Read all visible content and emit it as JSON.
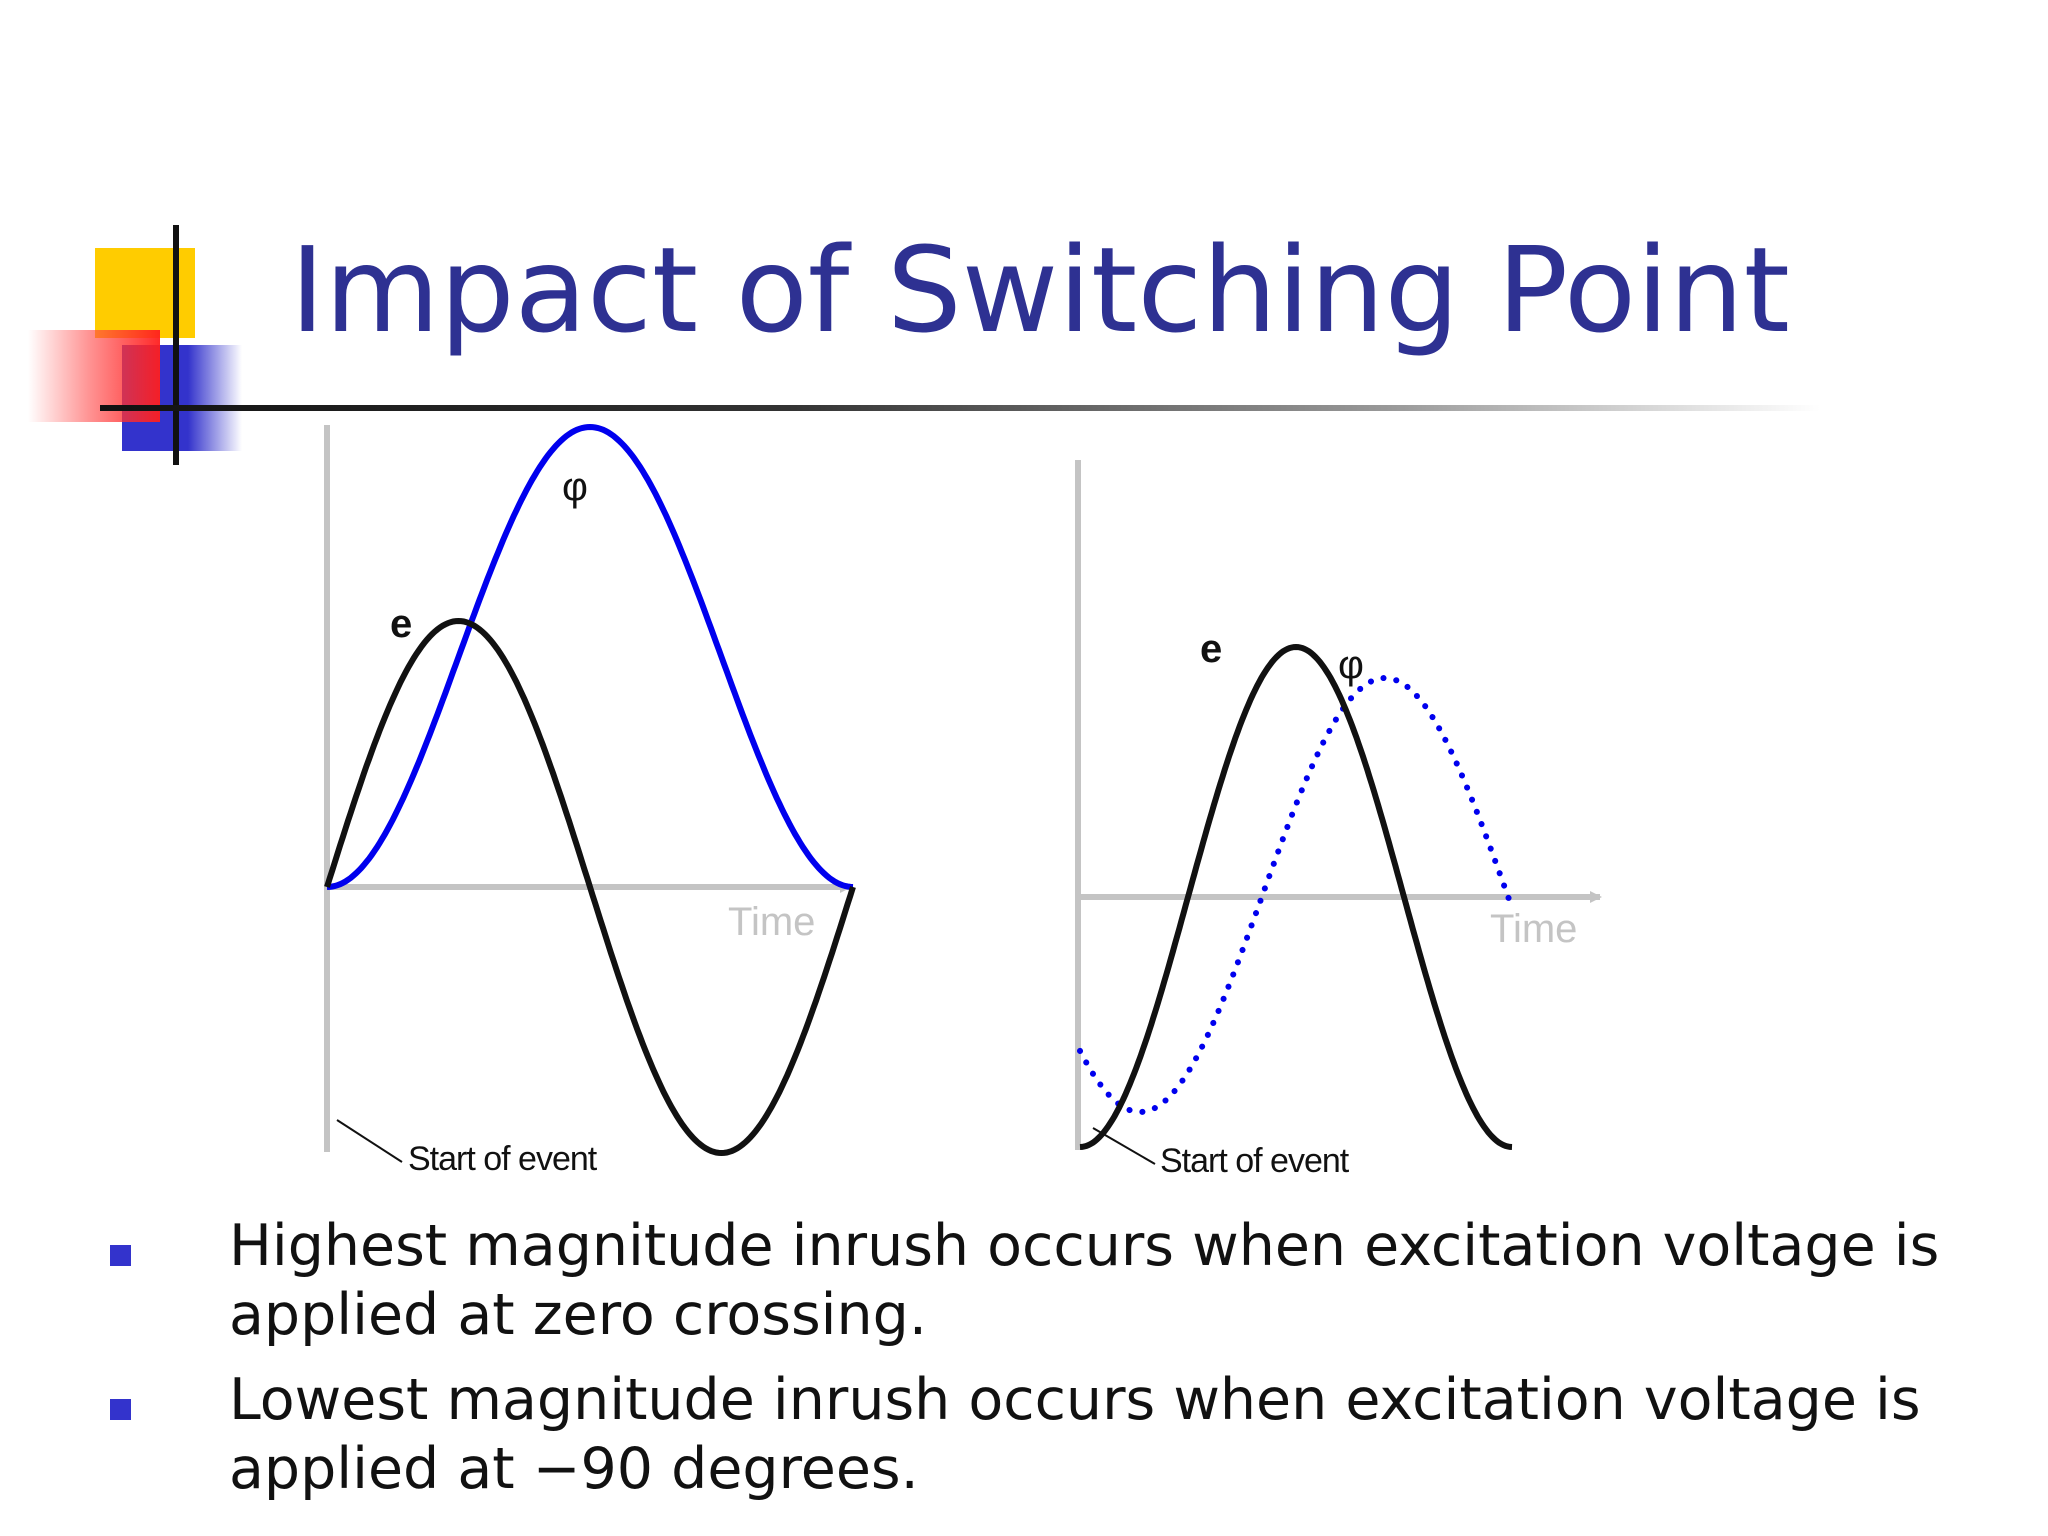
{
  "title": "Impact of Switching Point",
  "left_panel": {
    "e_label": "e",
    "phi_label": "φ",
    "axis_label": "Time",
    "annotation": "Start of event"
  },
  "right_panel": {
    "e_label": "e",
    "phi_label": "φ",
    "axis_label": "Time",
    "annotation": "Start of event"
  },
  "bullets": [
    "Highest magnitude inrush occurs when excitation voltage is applied at zero crossing.",
    "Lowest magnitude inrush occurs when excitation voltage is applied at −90 degrees."
  ],
  "colors": {
    "title": "#2e3192",
    "flux": "#0000ee",
    "voltage": "#111111",
    "axis": "#c4c4c4",
    "bullet_marker": "#3333cc"
  }
}
